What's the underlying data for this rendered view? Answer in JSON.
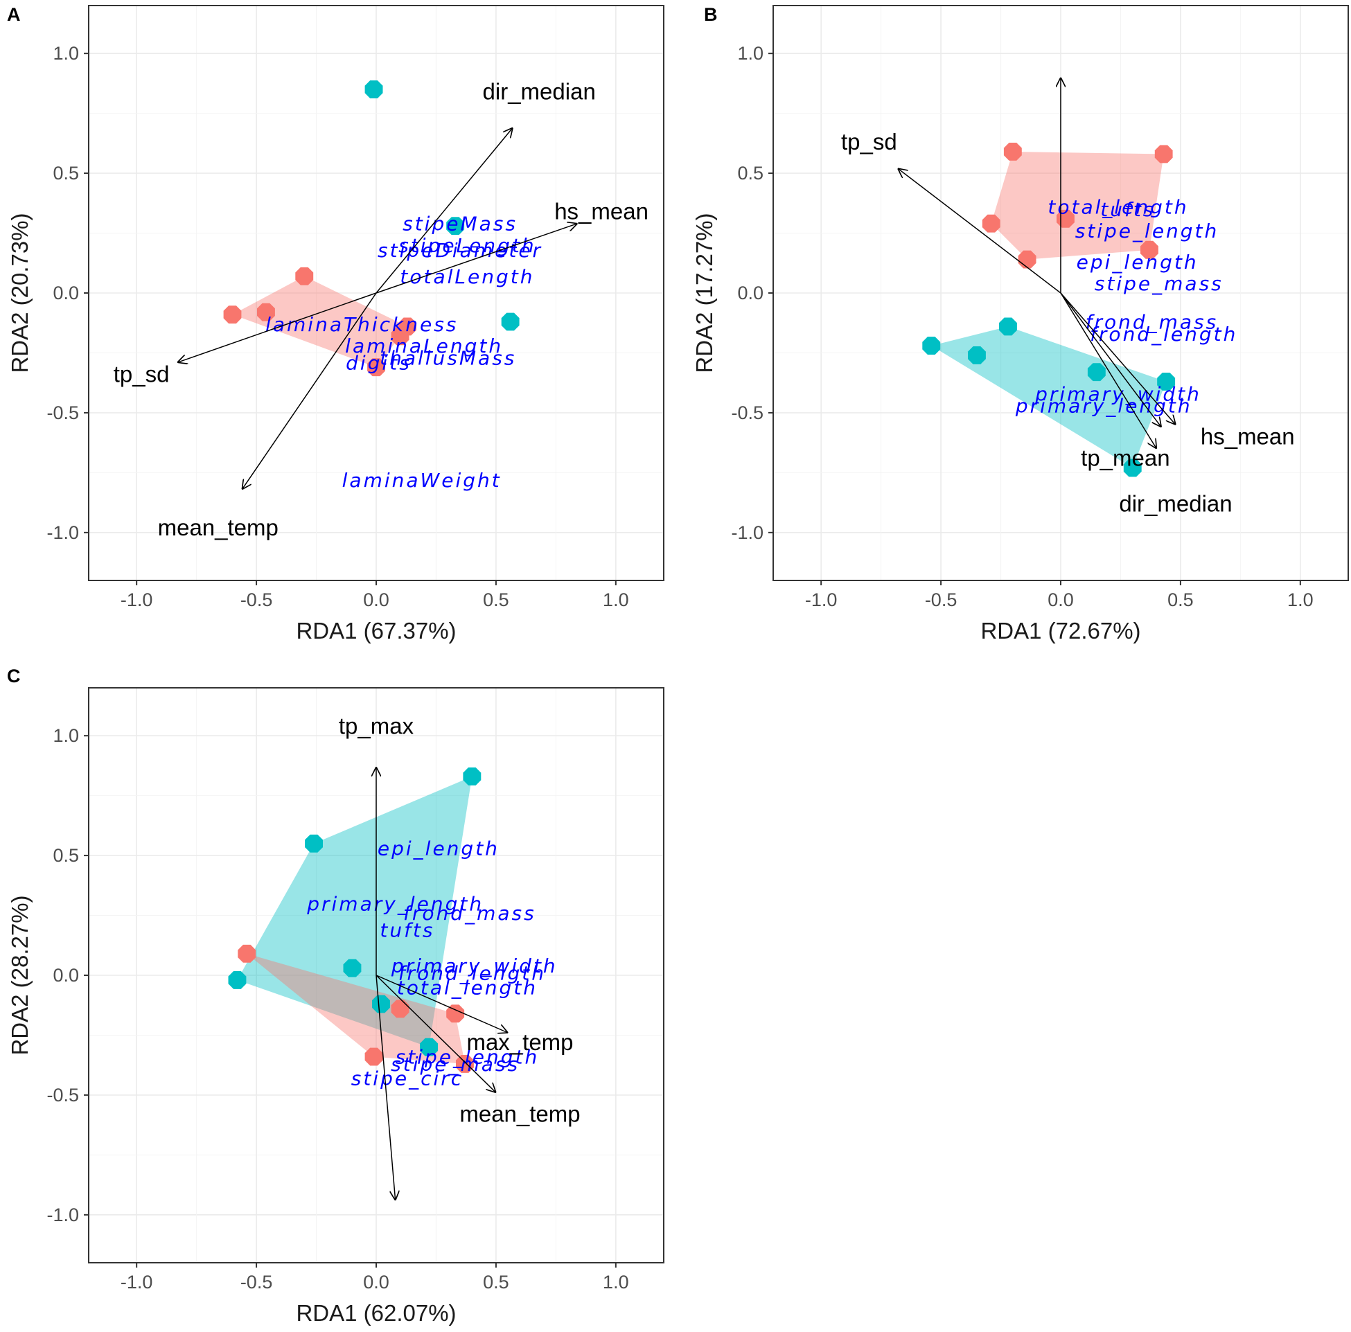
{
  "colors": {
    "red": "#F8766D",
    "cyan": "#00BFC4",
    "species_text": "#0000FF",
    "env_text": "#000000"
  },
  "chart_data": [
    {
      "panel": "A",
      "type": "scatter",
      "xlabel": "RDA1 (67.37%)",
      "ylabel": "RDA2 (20.73%)",
      "xlim": [
        -1.2,
        1.2
      ],
      "ylim": [
        -1.2,
        1.2
      ],
      "xticks": [
        "-1.0",
        "-0.5",
        "0.0",
        "0.5",
        "1.0"
      ],
      "yticks": [
        "-1.0",
        "-0.5",
        "0.0",
        "0.5",
        "1.0"
      ],
      "groups": [
        {
          "color": "red",
          "hull": true,
          "points": [
            [
              -0.6,
              -0.09
            ],
            [
              -0.46,
              -0.08
            ],
            [
              -0.3,
              0.07
            ],
            [
              0.13,
              -0.14
            ],
            [
              0.1,
              -0.18
            ],
            [
              0.0,
              -0.31
            ]
          ]
        },
        {
          "color": "cyan",
          "hull": false,
          "points": [
            [
              -0.01,
              0.85
            ],
            [
              0.33,
              0.28
            ],
            [
              0.56,
              -0.12
            ]
          ]
        }
      ],
      "arrows": [
        {
          "label": "dir_median",
          "end": [
            0.57,
            0.69
          ],
          "label_pos": [
            0.68,
            0.84
          ]
        },
        {
          "label": "hs_mean",
          "end": [
            0.84,
            0.29
          ],
          "label_pos": [
            0.94,
            0.34
          ]
        },
        {
          "label": "tp_sd",
          "end": [
            -0.83,
            -0.29
          ],
          "label_pos": [
            -0.98,
            -0.34
          ]
        },
        {
          "label": "mean_temp",
          "end": [
            -0.56,
            -0.82
          ],
          "label_pos": [
            -0.66,
            -0.98
          ]
        }
      ],
      "species": [
        {
          "label": "stipeMass",
          "pos": [
            0.35,
            0.29
          ]
        },
        {
          "label": "stipeLength",
          "pos": [
            0.38,
            0.2
          ]
        },
        {
          "label": "stipeDiameter",
          "pos": [
            0.35,
            0.18
          ]
        },
        {
          "label": "totalLength",
          "pos": [
            0.38,
            0.07
          ]
        },
        {
          "label": "laminaThickness",
          "pos": [
            -0.06,
            -0.13
          ]
        },
        {
          "label": "laminaLength",
          "pos": [
            0.2,
            -0.22
          ]
        },
        {
          "label": "thallusMass",
          "pos": [
            0.3,
            -0.27
          ]
        },
        {
          "label": "digits",
          "pos": [
            0.01,
            -0.29
          ]
        },
        {
          "label": "laminaWeight",
          "pos": [
            0.19,
            -0.78
          ]
        }
      ]
    },
    {
      "panel": "B",
      "type": "scatter",
      "xlabel": "RDA1 (72.67%)",
      "ylabel": "RDA2 (17.27%)",
      "xlim": [
        -1.2,
        1.2
      ],
      "ylim": [
        -1.2,
        1.2
      ],
      "xticks": [
        "-1.0",
        "-0.5",
        "0.0",
        "0.5",
        "1.0"
      ],
      "yticks": [
        "-1.0",
        "-0.5",
        "0.0",
        "0.5",
        "1.0"
      ],
      "groups": [
        {
          "color": "red",
          "hull": true,
          "points": [
            [
              -0.2,
              0.59
            ],
            [
              0.43,
              0.58
            ],
            [
              0.37,
              0.18
            ],
            [
              0.02,
              0.31
            ],
            [
              -0.14,
              0.14
            ],
            [
              -0.29,
              0.29
            ]
          ]
        },
        {
          "color": "cyan",
          "hull": true,
          "points": [
            [
              -0.54,
              -0.22
            ],
            [
              -0.35,
              -0.26
            ],
            [
              -0.22,
              -0.14
            ],
            [
              0.15,
              -0.33
            ],
            [
              0.44,
              -0.37
            ],
            [
              0.3,
              -0.73
            ]
          ]
        }
      ],
      "arrows": [
        {
          "label": "tp_sd",
          "end": [
            -0.68,
            0.52
          ],
          "label_pos": [
            -0.8,
            0.63
          ]
        },
        {
          "label": "hs_mean",
          "end": [
            0.48,
            -0.55
          ],
          "label_pos": [
            0.78,
            -0.6
          ]
        },
        {
          "label": "tp_mean",
          "end": [
            0.42,
            -0.56
          ],
          "label_pos": [
            0.27,
            -0.69
          ]
        },
        {
          "label": "dir_median",
          "end": [
            0.4,
            -0.65
          ],
          "label_pos": [
            0.48,
            -0.88
          ]
        },
        {
          "label": "",
          "end": [
            0.0,
            0.9
          ],
          "label_pos": [
            0.0,
            0.9
          ]
        }
      ],
      "species": [
        {
          "label": "total_length",
          "pos": [
            0.24,
            0.36
          ]
        },
        {
          "label": "tufts",
          "pos": [
            0.28,
            0.35
          ]
        },
        {
          "label": "stipe_length",
          "pos": [
            0.36,
            0.26
          ]
        },
        {
          "label": "epi_length",
          "pos": [
            0.32,
            0.13
          ]
        },
        {
          "label": "stipe_mass",
          "pos": [
            0.41,
            0.04
          ]
        },
        {
          "label": "frond_mass",
          "pos": [
            0.38,
            -0.12
          ]
        },
        {
          "label": "frond_length",
          "pos": [
            0.43,
            -0.17
          ]
        },
        {
          "label": "primary_width",
          "pos": [
            0.24,
            -0.42
          ]
        },
        {
          "label": "primary_length",
          "pos": [
            0.18,
            -0.47
          ]
        }
      ]
    },
    {
      "panel": "C",
      "type": "scatter",
      "xlabel": "RDA1 (62.07%)",
      "ylabel": "RDA2 (28.27%)",
      "xlim": [
        -1.2,
        1.2
      ],
      "ylim": [
        -1.2,
        1.2
      ],
      "xticks": [
        "-1.0",
        "-0.5",
        "0.0",
        "0.5",
        "1.0"
      ],
      "yticks": [
        "-1.0",
        "-0.5",
        "0.0",
        "0.5",
        "1.0"
      ],
      "groups": [
        {
          "color": "cyan",
          "hull": true,
          "points": [
            [
              0.4,
              0.83
            ],
            [
              -0.26,
              0.55
            ],
            [
              -0.58,
              -0.02
            ],
            [
              0.22,
              -0.3
            ],
            [
              -0.1,
              0.03
            ],
            [
              0.02,
              -0.12
            ]
          ]
        },
        {
          "color": "red",
          "hull": true,
          "points": [
            [
              -0.54,
              0.09
            ],
            [
              0.33,
              -0.16
            ],
            [
              0.37,
              -0.37
            ],
            [
              -0.01,
              -0.34
            ],
            [
              0.1,
              -0.14
            ]
          ]
        }
      ],
      "arrows": [
        {
          "label": "tp_max",
          "end": [
            0.0,
            0.87
          ],
          "label_pos": [
            0.0,
            1.04
          ]
        },
        {
          "label": "max_temp",
          "end": [
            0.55,
            -0.24
          ],
          "label_pos": [
            0.6,
            -0.28
          ]
        },
        {
          "label": "mean_temp",
          "end": [
            0.5,
            -0.49
          ],
          "label_pos": [
            0.6,
            -0.58
          ]
        },
        {
          "label": "",
          "end": [
            0.08,
            -0.94
          ],
          "label_pos": [
            0.08,
            -0.94
          ]
        }
      ],
      "species": [
        {
          "label": "epi_length",
          "pos": [
            0.26,
            0.53
          ]
        },
        {
          "label": "primary_length",
          "pos": [
            0.08,
            0.3
          ]
        },
        {
          "label": "frond_mass",
          "pos": [
            0.39,
            0.26
          ]
        },
        {
          "label": "tufts",
          "pos": [
            0.13,
            0.19
          ]
        },
        {
          "label": "primary_width",
          "pos": [
            0.41,
            0.04
          ]
        },
        {
          "label": "frond_length",
          "pos": [
            0.4,
            0.01
          ]
        },
        {
          "label": "total_length",
          "pos": [
            0.38,
            -0.05
          ]
        },
        {
          "label": "stipe_length",
          "pos": [
            0.38,
            -0.34
          ]
        },
        {
          "label": "stipe_mass",
          "pos": [
            0.33,
            -0.37
          ]
        },
        {
          "label": "stipe_circ",
          "pos": [
            0.13,
            -0.43
          ]
        }
      ]
    }
  ]
}
